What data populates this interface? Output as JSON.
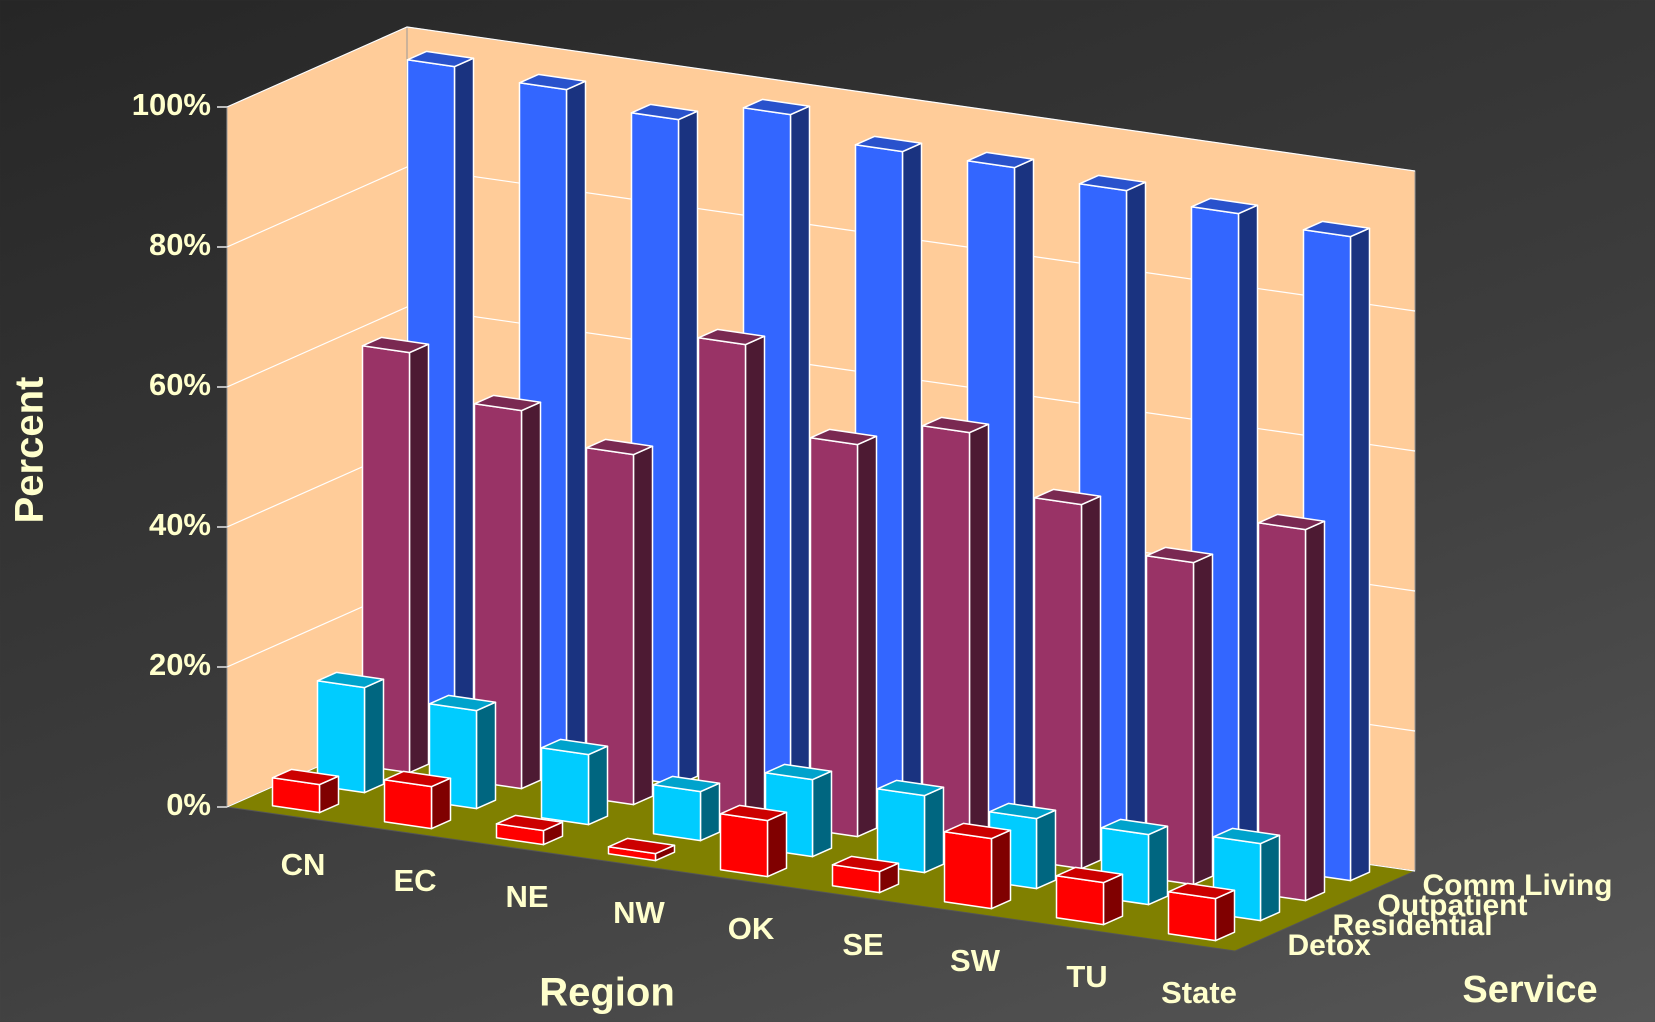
{
  "chart_data": {
    "type": "bar3d",
    "y_label": "Percent",
    "x_label": "Region",
    "z_label": "Service",
    "categories": [
      "CN",
      "EC",
      "NE",
      "NW",
      "OK",
      "SE",
      "SW",
      "TU",
      "State"
    ],
    "series": [
      {
        "name": "Detox",
        "color": "#FF0000",
        "values": [
          4,
          6,
          2,
          1,
          8,
          3,
          10,
          6,
          6
        ]
      },
      {
        "name": "Residential",
        "color": "#00CCFF",
        "values": [
          15,
          14,
          10,
          7,
          11,
          11,
          10,
          10,
          11
        ]
      },
      {
        "name": "Outpatient",
        "color": "#993366",
        "values": [
          60,
          54,
          50,
          68,
          56,
          60,
          52,
          46,
          53
        ]
      },
      {
        "name": "Comm Living",
        "color": "#3366FF",
        "values": [
          98,
          97,
          95,
          98,
          95,
          95,
          94,
          93,
          92
        ]
      }
    ],
    "ylim": [
      0,
      100
    ],
    "yticks": [
      {
        "value": 0,
        "label": "0%"
      },
      {
        "value": 20,
        "label": "20%"
      },
      {
        "value": 40,
        "label": "40%"
      },
      {
        "value": 60,
        "label": "60%"
      },
      {
        "value": 80,
        "label": "80%"
      },
      {
        "value": 100,
        "label": "100%"
      }
    ],
    "grid": true
  }
}
